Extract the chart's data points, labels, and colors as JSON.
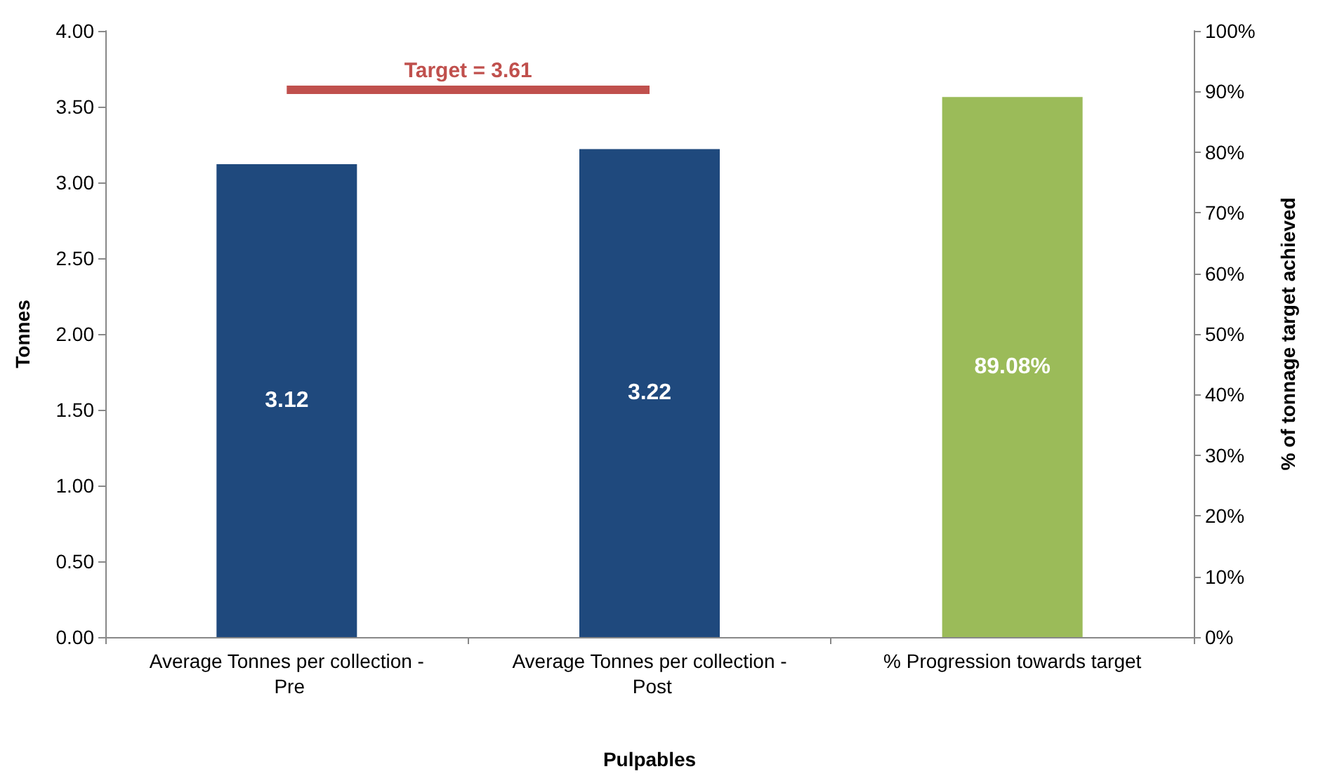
{
  "chart_data": {
    "type": "bar",
    "xlabel": "Pulpables",
    "ylabel": "Tonnes",
    "y2label": "% of tonnage target achieved",
    "categories": [
      "Average Tonnes per collection - Pre",
      "Average Tonnes per collection - Post",
      "% Progression towards target"
    ],
    "series": [
      {
        "color": "#1f497d",
        "values": [
          3.12,
          3.22,
          null
        ],
        "value_labels": [
          "3.12",
          "3.22",
          null
        ]
      },
      {
        "color": "#9bbb59",
        "axis": "y2",
        "values": [
          null,
          null,
          89.08
        ],
        "value_labels": [
          null,
          null,
          "89.08%"
        ]
      }
    ],
    "ylim": [
      0,
      4
    ],
    "yticks": [
      {
        "value": 0,
        "label": "0.00"
      },
      {
        "value": 0.5,
        "label": "0.50"
      },
      {
        "value": 1,
        "label": "1.00"
      },
      {
        "value": 1.5,
        "label": "1.50"
      },
      {
        "value": 2,
        "label": "2.00"
      },
      {
        "value": 2.5,
        "label": "2.50"
      },
      {
        "value": 3,
        "label": "3.00"
      },
      {
        "value": 3.5,
        "label": "3.50"
      },
      {
        "value": 4,
        "label": "4.00"
      }
    ],
    "y2lim": [
      0,
      100
    ],
    "y2ticks": [
      {
        "value": 0,
        "label": "0%"
      },
      {
        "value": 10,
        "label": "10%"
      },
      {
        "value": 20,
        "label": "20%"
      },
      {
        "value": 30,
        "label": "30%"
      },
      {
        "value": 40,
        "label": "40%"
      },
      {
        "value": 50,
        "label": "50%"
      },
      {
        "value": 60,
        "label": "60%"
      },
      {
        "value": 70,
        "label": "70%"
      },
      {
        "value": 80,
        "label": "80%"
      },
      {
        "value": 90,
        "label": "90%"
      },
      {
        "value": 100,
        "label": "100%"
      }
    ],
    "ref_lines": [
      {
        "axis": "y",
        "value": 3.61,
        "label": "Target = 3.61",
        "color": "#c0504d"
      }
    ]
  }
}
